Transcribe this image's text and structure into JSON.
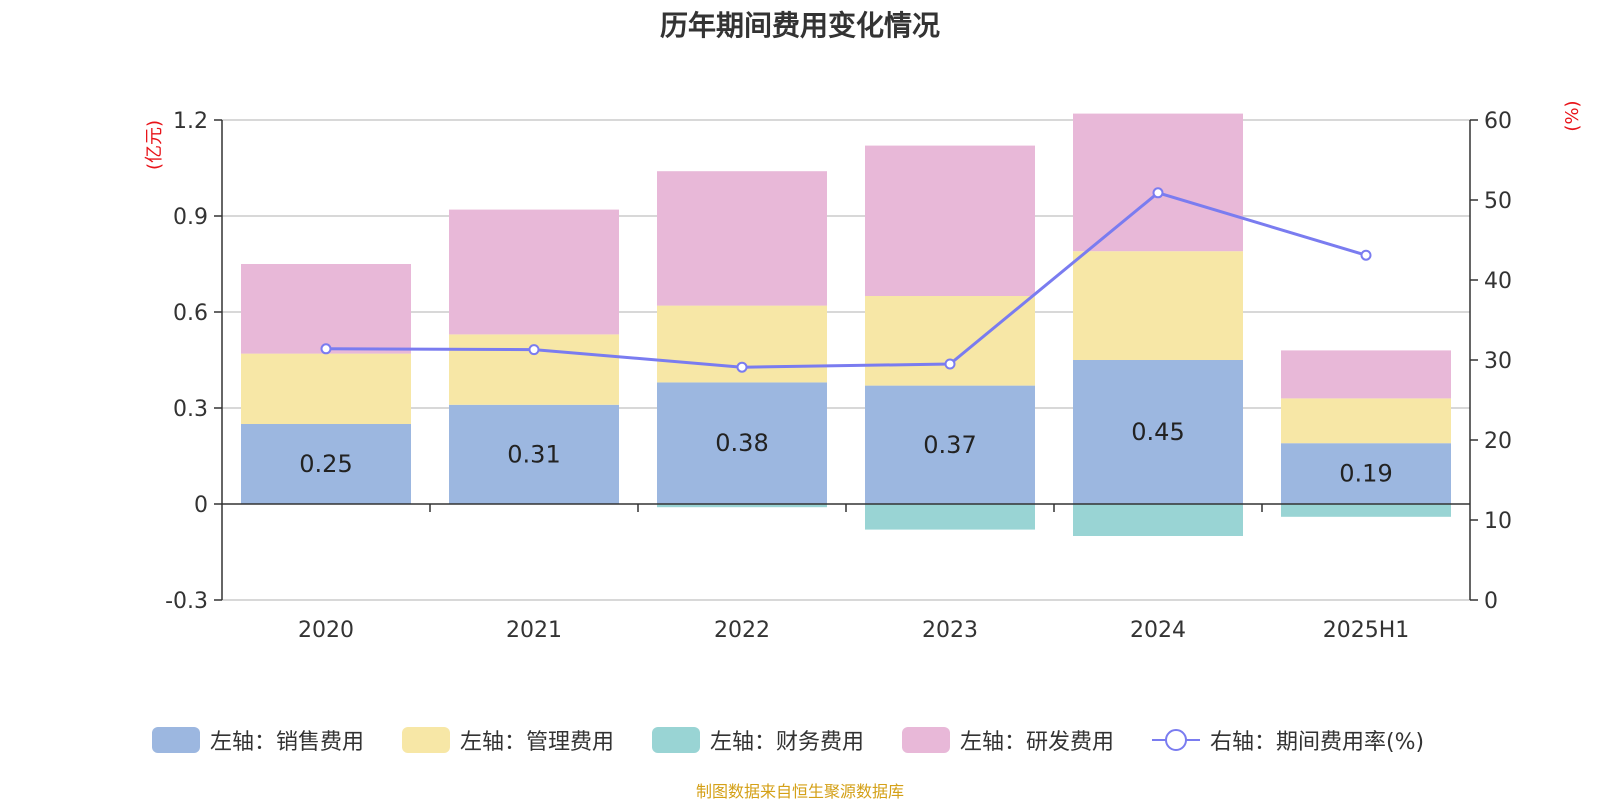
{
  "title": "历年期间费用变化情况",
  "source": "制图数据来自恒生聚源数据库",
  "colors": {
    "sales": "#9cb7e0",
    "admin": "#f7e7a6",
    "finance": "#99d4d4",
    "rnd": "#e8b8d8",
    "rate": "#7a7cf0",
    "unit_label": "#e8141a"
  },
  "chart_data": {
    "type": "bar",
    "stacked": true,
    "categories": [
      "2020",
      "2021",
      "2022",
      "2023",
      "2024",
      "2025H1"
    ],
    "left_axis": {
      "unit": "(亿元)",
      "ylim": [
        -0.3,
        1.2
      ],
      "ticks": [
        "-0.3",
        "0",
        "0.3",
        "0.6",
        "0.9",
        "1.2"
      ]
    },
    "right_axis": {
      "unit": "(%)",
      "ylim": [
        0,
        60
      ],
      "ticks": [
        "0",
        "10",
        "20",
        "30",
        "40",
        "50",
        "60"
      ]
    },
    "grid": true,
    "legend_position": "bottom",
    "series": [
      {
        "key": "sales",
        "name": "左轴：销售费用",
        "axis": "left",
        "values": [
          0.25,
          0.31,
          0.38,
          0.37,
          0.45,
          0.19
        ],
        "data_labels": [
          "0.25",
          "0.31",
          "0.38",
          "0.37",
          "0.45",
          "0.19"
        ]
      },
      {
        "key": "admin",
        "name": "左轴：管理费用",
        "axis": "left",
        "values": [
          0.22,
          0.22,
          0.24,
          0.28,
          0.34,
          0.14
        ]
      },
      {
        "key": "finance",
        "name": "左轴：财务费用",
        "axis": "left",
        "values": [
          0.0,
          0.0,
          -0.01,
          -0.08,
          -0.1,
          -0.04
        ]
      },
      {
        "key": "rnd",
        "name": "左轴：研发费用",
        "axis": "left",
        "values": [
          0.28,
          0.39,
          0.42,
          0.47,
          0.43,
          0.15
        ]
      },
      {
        "key": "rate",
        "name": "右轴：期间费用率(%)",
        "axis": "right",
        "type": "line",
        "values": [
          31.4,
          31.3,
          29.1,
          29.5,
          50.9,
          43.1
        ]
      }
    ]
  }
}
